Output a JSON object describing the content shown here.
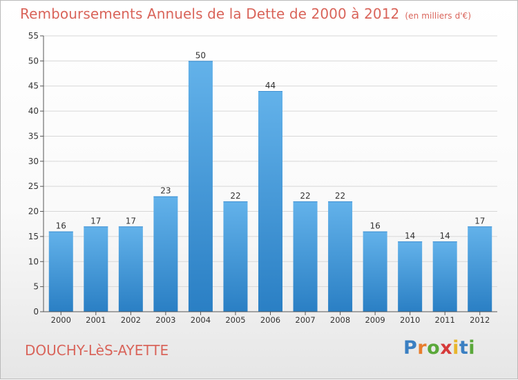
{
  "chart_data": {
    "type": "bar",
    "title": "Remboursements Annuels de la Dette de 2000 à 2012",
    "subtitle": "(en milliers d'€)",
    "categories": [
      "2000",
      "2001",
      "2002",
      "2003",
      "2004",
      "2005",
      "2006",
      "2007",
      "2008",
      "2009",
      "2010",
      "2011",
      "2012"
    ],
    "values": [
      16,
      17,
      17,
      23,
      50,
      22,
      44,
      22,
      22,
      16,
      14,
      14,
      17
    ],
    "ylim": [
      0,
      55
    ],
    "yticks": [
      0,
      5,
      10,
      15,
      20,
      25,
      30,
      35,
      40,
      45,
      50,
      55
    ],
    "grid": true,
    "xlabel": "",
    "ylabel": ""
  },
  "location": "DOUCHY-LèS-AYETTE",
  "logo": {
    "letters": [
      "P",
      "r",
      "o",
      "x",
      "i",
      "t",
      "i"
    ],
    "colors": [
      "#3a7fc2",
      "#e87d2c",
      "#5aa83a",
      "#d63a3a",
      "#e8b62c",
      "#3a7fc2",
      "#5aa83a"
    ]
  },
  "colors": {
    "bar_top": "#63b2ea",
    "bar_bottom": "#2a7fc4",
    "title": "#d9645a",
    "grid": "#d7d7d7",
    "axis": "#555555"
  }
}
